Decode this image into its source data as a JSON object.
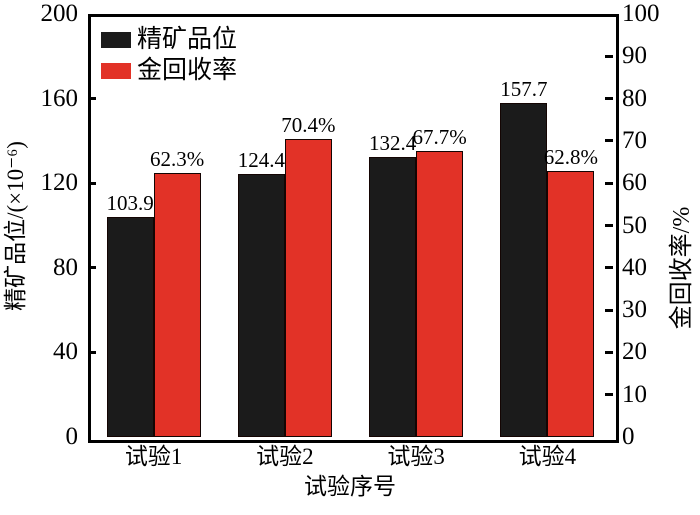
{
  "chart_data": {
    "type": "bar",
    "title": "",
    "categories": [
      "试验1",
      "试验2",
      "试验3",
      "试验4"
    ],
    "series": [
      {
        "name": "精矿品位",
        "axis": "left",
        "color": "#1b1b1b",
        "values": [
          103.9,
          124.4,
          132.4,
          157.7
        ],
        "labels": [
          "103.9",
          "124.4",
          "132.4",
          "157.7"
        ]
      },
      {
        "name": "金回收率",
        "axis": "right",
        "color": "#e23227",
        "values": [
          62.3,
          70.4,
          67.7,
          62.8
        ],
        "labels": [
          "62.3%",
          "70.4%",
          "67.7%",
          "62.8%"
        ]
      }
    ],
    "xlabel": "试验序号",
    "left_axis": {
      "label": "精矿品位/(×10⁻⁶)",
      "min": 0,
      "max": 200,
      "ticks": [
        0,
        40,
        80,
        120,
        160,
        200
      ]
    },
    "right_axis": {
      "label": "金回收率/%",
      "min": 0,
      "max": 100,
      "ticks": [
        0,
        10,
        20,
        30,
        40,
        50,
        60,
        70,
        80,
        90,
        100
      ]
    },
    "legend_position": "top-left-inside",
    "grid": false,
    "colors": {
      "bar_black": "#1b1b1b",
      "bar_red": "#e23227",
      "axis": "#000000",
      "background": "#ffffff"
    }
  }
}
